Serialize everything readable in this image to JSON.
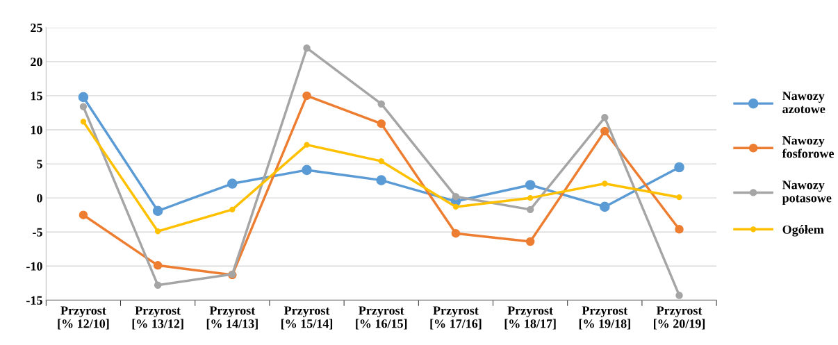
{
  "chart_data": {
    "type": "line",
    "categories": [
      "Przyrost\n[% 12/10]",
      "Przyrost\n[% 13/12]",
      "Przyrost\n[% 14/13]",
      "Przyrost\n[% 15/14]",
      "Przyrost\n[% 16/15]",
      "Przyrost\n[% 17/16]",
      "Przyrost\n[% 18/17]",
      "Przyrost\n[% 19/18]",
      "Przyrost\n[% 20/19]"
    ],
    "series": [
      {
        "name": "Nawozy\nazotowe",
        "color": "#5b9bd5",
        "values": [
          14.8,
          -1.9,
          2.1,
          4.1,
          2.6,
          -0.5,
          1.9,
          -1.3,
          4.5
        ]
      },
      {
        "name": "Nawozy\nfosforowe",
        "color": "#ed7d31",
        "values": [
          -2.5,
          -9.9,
          -11.3,
          15.0,
          10.9,
          -5.2,
          -6.4,
          9.8,
          -4.6
        ]
      },
      {
        "name": "Nawozy\npotasowe",
        "color": "#a5a5a5",
        "values": [
          13.4,
          -12.8,
          -11.2,
          22.0,
          13.8,
          0.2,
          -1.7,
          11.8,
          -14.3
        ]
      },
      {
        "name": "Ogółem",
        "color": "#ffc000",
        "values": [
          11.2,
          -4.9,
          -1.7,
          7.8,
          5.4,
          -1.3,
          0.0,
          2.1,
          0.1
        ]
      }
    ],
    "ylim": [
      -15,
      25
    ],
    "yticks": [
      -15,
      -10,
      -5,
      0,
      5,
      10,
      15,
      20,
      25
    ],
    "grid": "y",
    "legend": "right",
    "marker": "circle",
    "line_style": "solid"
  }
}
